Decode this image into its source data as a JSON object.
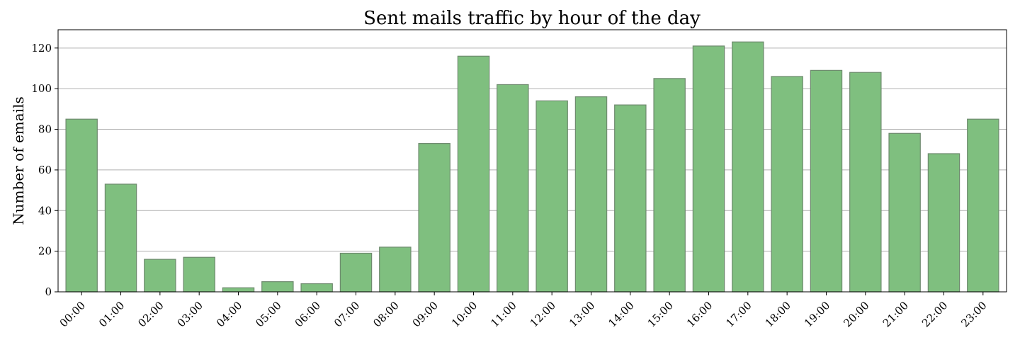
{
  "chart_data": {
    "type": "bar",
    "title": "Sent mails traffic by hour of the day",
    "xlabel": "",
    "ylabel": "Number of emails",
    "categories": [
      "00:00",
      "01:00",
      "02:00",
      "03:00",
      "04:00",
      "05:00",
      "06:00",
      "07:00",
      "08:00",
      "09:00",
      "10:00",
      "11:00",
      "12:00",
      "13:00",
      "14:00",
      "15:00",
      "16:00",
      "17:00",
      "18:00",
      "19:00",
      "20:00",
      "21:00",
      "22:00",
      "23:00"
    ],
    "values": [
      85,
      53,
      16,
      17,
      2,
      5,
      4,
      19,
      22,
      73,
      116,
      102,
      94,
      96,
      92,
      105,
      121,
      123,
      106,
      109,
      108,
      78,
      68,
      85
    ],
    "ylim": [
      0,
      129
    ],
    "yticks": [
      0,
      20,
      40,
      60,
      80,
      100,
      120
    ],
    "grid": "horizontal",
    "legend": "none",
    "colors": {
      "bar_fill": "#7fbf7f",
      "bar_edge": "#6e8a6e",
      "grid": "#b0b0b0",
      "axis": "#000000"
    }
  }
}
